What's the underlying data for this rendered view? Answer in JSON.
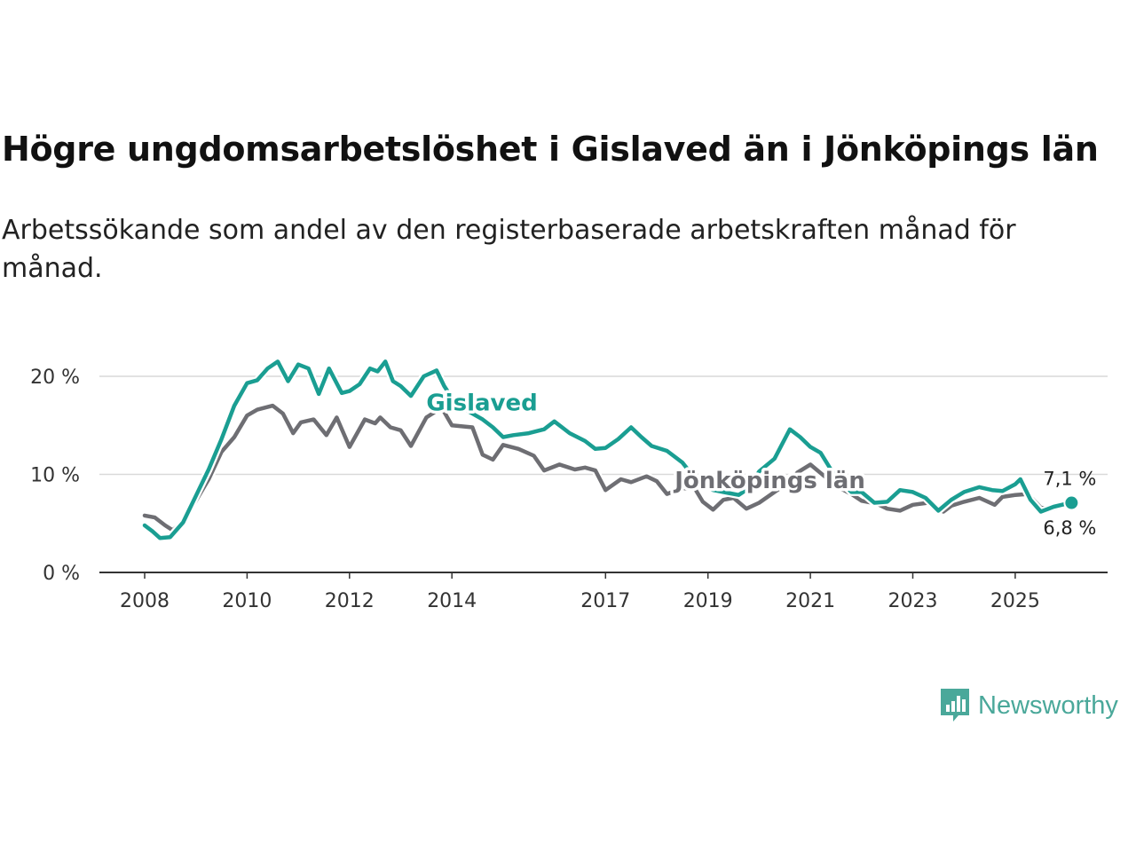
{
  "header": {
    "title": "Högre ungdomsarbetslöshet i Gislaved än i Jönköpings län",
    "subtitle": "Arbetssökande som andel av den registerbaserade arbetskraften månad för månad."
  },
  "brand": {
    "name": "Newsworthy",
    "icon": "newsworthy-logo-icon",
    "color": "#4aa89a"
  },
  "chart_data": {
    "type": "line",
    "title": "Högre ungdomsarbetslöshet i Gislaved än i Jönköpings län",
    "subtitle": "Arbetssökande som andel av den registerbaserade arbetskraften månad för månad.",
    "xlabel": "",
    "ylabel": "",
    "xlim": [
      2007.5,
      2026.8
    ],
    "ylim": [
      0,
      22
    ],
    "grid": true,
    "x_ticks": [
      {
        "value": 2008,
        "label": "2008"
      },
      {
        "value": 2010,
        "label": "2010"
      },
      {
        "value": 2012,
        "label": "2012"
      },
      {
        "value": 2014,
        "label": "2014"
      },
      {
        "value": 2017,
        "label": "2017"
      },
      {
        "value": 2019,
        "label": "2019"
      },
      {
        "value": 2021,
        "label": "2021"
      },
      {
        "value": 2023,
        "label": "2023"
      },
      {
        "value": 2025,
        "label": "2025"
      }
    ],
    "y_ticks": [
      {
        "value": 0,
        "label": "0 %"
      },
      {
        "value": 10,
        "label": "10 %"
      },
      {
        "value": 20,
        "label": "20 %"
      }
    ],
    "series": [
      {
        "name": "Jönköpings län",
        "color": "#6e6e73",
        "end_label": "6,8 %",
        "points": [
          [
            2008.0,
            5.8
          ],
          [
            2008.2,
            5.6
          ],
          [
            2008.4,
            4.8
          ],
          [
            2008.55,
            4.3
          ],
          [
            2008.75,
            5.2
          ],
          [
            2009.0,
            7.3
          ],
          [
            2009.25,
            9.5
          ],
          [
            2009.5,
            12.3
          ],
          [
            2009.75,
            13.8
          ],
          [
            2010.0,
            16.0
          ],
          [
            2010.2,
            16.6
          ],
          [
            2010.5,
            17.0
          ],
          [
            2010.7,
            16.2
          ],
          [
            2010.9,
            14.2
          ],
          [
            2011.05,
            15.3
          ],
          [
            2011.3,
            15.6
          ],
          [
            2011.55,
            14.0
          ],
          [
            2011.75,
            15.8
          ],
          [
            2012.0,
            12.8
          ],
          [
            2012.3,
            15.6
          ],
          [
            2012.5,
            15.2
          ],
          [
            2012.6,
            15.8
          ],
          [
            2012.8,
            14.8
          ],
          [
            2013.0,
            14.5
          ],
          [
            2013.2,
            12.9
          ],
          [
            2013.5,
            15.8
          ],
          [
            2013.8,
            16.8
          ],
          [
            2014.0,
            15.0
          ],
          [
            2014.4,
            14.8
          ],
          [
            2014.6,
            12.0
          ],
          [
            2014.8,
            11.5
          ],
          [
            2015.0,
            13.0
          ],
          [
            2015.3,
            12.6
          ],
          [
            2015.6,
            11.9
          ],
          [
            2015.8,
            10.4
          ],
          [
            2016.1,
            11.0
          ],
          [
            2016.4,
            10.5
          ],
          [
            2016.6,
            10.7
          ],
          [
            2016.8,
            10.4
          ],
          [
            2017.0,
            8.4
          ],
          [
            2017.3,
            9.5
          ],
          [
            2017.5,
            9.2
          ],
          [
            2017.8,
            9.8
          ],
          [
            2018.0,
            9.3
          ],
          [
            2018.2,
            8.0
          ],
          [
            2018.5,
            8.6
          ],
          [
            2018.75,
            8.5
          ],
          [
            2018.9,
            7.2
          ],
          [
            2019.1,
            6.4
          ],
          [
            2019.3,
            7.4
          ],
          [
            2019.5,
            7.6
          ],
          [
            2019.75,
            6.5
          ],
          [
            2020.0,
            7.1
          ],
          [
            2020.3,
            8.2
          ],
          [
            2020.55,
            9.1
          ],
          [
            2020.75,
            10.2
          ],
          [
            2021.0,
            11.0
          ],
          [
            2021.3,
            9.7
          ],
          [
            2021.5,
            8.8
          ],
          [
            2021.8,
            8.0
          ],
          [
            2022.0,
            7.3
          ],
          [
            2022.3,
            7.0
          ],
          [
            2022.5,
            6.5
          ],
          [
            2022.75,
            6.3
          ],
          [
            2023.0,
            6.9
          ],
          [
            2023.3,
            7.1
          ],
          [
            2023.6,
            6.2
          ],
          [
            2023.75,
            6.8
          ],
          [
            2024.0,
            7.2
          ],
          [
            2024.3,
            7.6
          ],
          [
            2024.6,
            6.9
          ],
          [
            2024.75,
            7.7
          ],
          [
            2025.0,
            7.9
          ],
          [
            2025.25,
            8.0
          ],
          [
            2025.5,
            6.6
          ],
          [
            2025.75,
            6.5
          ],
          [
            2026.0,
            6.9
          ],
          [
            2026.1,
            6.8
          ]
        ]
      },
      {
        "name": "Gislaved",
        "color": "#1a9e92",
        "end_label": "7,1 %",
        "points": [
          [
            2008.0,
            4.8
          ],
          [
            2008.15,
            4.2
          ],
          [
            2008.3,
            3.5
          ],
          [
            2008.5,
            3.6
          ],
          [
            2008.75,
            5.1
          ],
          [
            2009.0,
            7.8
          ],
          [
            2009.25,
            10.5
          ],
          [
            2009.5,
            13.6
          ],
          [
            2009.75,
            17.0
          ],
          [
            2010.0,
            19.3
          ],
          [
            2010.2,
            19.6
          ],
          [
            2010.4,
            20.8
          ],
          [
            2010.6,
            21.5
          ],
          [
            2010.8,
            19.5
          ],
          [
            2011.0,
            21.2
          ],
          [
            2011.2,
            20.8
          ],
          [
            2011.4,
            18.2
          ],
          [
            2011.6,
            20.8
          ],
          [
            2011.85,
            18.3
          ],
          [
            2012.0,
            18.5
          ],
          [
            2012.2,
            19.2
          ],
          [
            2012.4,
            20.8
          ],
          [
            2012.55,
            20.5
          ],
          [
            2012.7,
            21.5
          ],
          [
            2012.85,
            19.5
          ],
          [
            2013.0,
            19.0
          ],
          [
            2013.2,
            18.0
          ],
          [
            2013.45,
            20.0
          ],
          [
            2013.7,
            20.6
          ],
          [
            2013.85,
            19.0
          ],
          [
            2014.0,
            17.8
          ],
          [
            2014.3,
            16.5
          ],
          [
            2014.6,
            15.6
          ],
          [
            2014.8,
            14.8
          ],
          [
            2015.0,
            13.8
          ],
          [
            2015.2,
            14.0
          ],
          [
            2015.5,
            14.2
          ],
          [
            2015.8,
            14.6
          ],
          [
            2016.0,
            15.4
          ],
          [
            2016.3,
            14.2
          ],
          [
            2016.6,
            13.4
          ],
          [
            2016.8,
            12.6
          ],
          [
            2017.0,
            12.7
          ],
          [
            2017.25,
            13.6
          ],
          [
            2017.5,
            14.8
          ],
          [
            2017.7,
            13.8
          ],
          [
            2017.9,
            12.9
          ],
          [
            2018.2,
            12.4
          ],
          [
            2018.5,
            11.2
          ],
          [
            2018.7,
            9.9
          ],
          [
            2018.9,
            8.8
          ],
          [
            2019.1,
            8.4
          ],
          [
            2019.4,
            8.1
          ],
          [
            2019.6,
            7.9
          ],
          [
            2019.8,
            8.6
          ],
          [
            2020.0,
            10.3
          ],
          [
            2020.3,
            11.6
          ],
          [
            2020.6,
            14.6
          ],
          [
            2020.8,
            13.8
          ],
          [
            2021.0,
            12.8
          ],
          [
            2021.2,
            12.2
          ],
          [
            2021.4,
            10.5
          ],
          [
            2021.6,
            9.2
          ],
          [
            2021.8,
            8.2
          ],
          [
            2022.0,
            8.2
          ],
          [
            2022.25,
            7.1
          ],
          [
            2022.5,
            7.2
          ],
          [
            2022.75,
            8.4
          ],
          [
            2023.0,
            8.2
          ],
          [
            2023.25,
            7.6
          ],
          [
            2023.5,
            6.3
          ],
          [
            2023.75,
            7.4
          ],
          [
            2024.0,
            8.2
          ],
          [
            2024.3,
            8.7
          ],
          [
            2024.55,
            8.4
          ],
          [
            2024.75,
            8.3
          ],
          [
            2025.0,
            9.0
          ],
          [
            2025.1,
            9.5
          ],
          [
            2025.3,
            7.4
          ],
          [
            2025.5,
            6.2
          ],
          [
            2025.75,
            6.7
          ],
          [
            2026.0,
            7.0
          ],
          [
            2026.1,
            7.1
          ]
        ]
      }
    ],
    "annotations": [
      {
        "text": "Gislaved",
        "series": "Gislaved",
        "x": 2013.5,
        "y": 16.5
      },
      {
        "text": "Jönköpings län",
        "series": "Jönköpings län",
        "x": 2018.35,
        "y": 8.6
      }
    ]
  }
}
